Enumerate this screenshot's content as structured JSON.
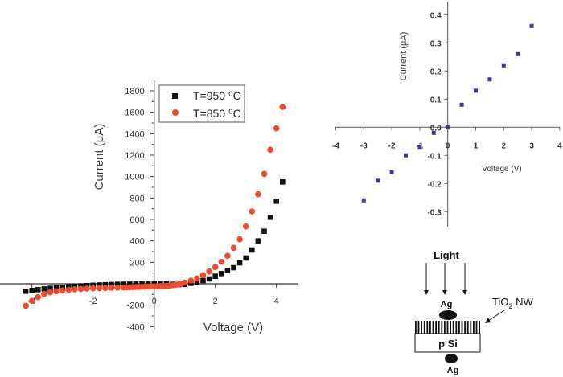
{
  "chart_data": [
    {
      "type": "scatter",
      "xlabel": "Voltage (V)",
      "ylabel": "Current (μA)",
      "xlim": [
        -4.2,
        4.6
      ],
      "ylim": [
        -400,
        1900
      ],
      "xticks": [
        -4,
        -2,
        0,
        2,
        4
      ],
      "xtick_labels": [
        "-4",
        "-2",
        "0",
        "2",
        "4"
      ],
      "yticks": [
        -400,
        -200,
        0,
        200,
        400,
        600,
        800,
        1000,
        1200,
        1400,
        1600,
        1800
      ],
      "ytick_labels": [
        "-400",
        "-200",
        "0",
        "200",
        "400",
        "600",
        "800",
        "1000",
        "1200",
        "1400",
        "1600",
        "1800"
      ],
      "legend_placement": "top-center",
      "grid": false,
      "series": [
        {
          "name": "T=950 ⁰C",
          "marker": "square",
          "color": "#111111",
          "x": [
            -4.2,
            -4.0,
            -3.8,
            -3.6,
            -3.4,
            -3.2,
            -3.0,
            -2.8,
            -2.6,
            -2.4,
            -2.2,
            -2.0,
            -1.8,
            -1.6,
            -1.4,
            -1.2,
            -1.0,
            -0.8,
            -0.6,
            -0.4,
            -0.2,
            0,
            0.2,
            0.4,
            0.6,
            0.8,
            1.0,
            1.2,
            1.4,
            1.6,
            1.8,
            2.0,
            2.2,
            2.4,
            2.6,
            2.8,
            3.0,
            3.2,
            3.4,
            3.6,
            3.8,
            4.0,
            4.2
          ],
          "y": [
            -70,
            -62,
            -55,
            -48,
            -42,
            -37,
            -32,
            -28,
            -24,
            -20,
            -17,
            -14,
            -11,
            -9,
            -7,
            -5,
            -4,
            -3,
            -2,
            -1,
            0,
            0,
            0,
            -2,
            -5,
            -8,
            -6,
            5,
            15,
            30,
            45,
            70,
            95,
            125,
            150,
            195,
            240,
            315,
            400,
            490,
            620,
            770,
            950
          ]
        },
        {
          "name": "T=850 ⁰C",
          "marker": "circle",
          "color": "#f04a2e",
          "x": [
            -4.2,
            -4.0,
            -3.8,
            -3.6,
            -3.4,
            -3.2,
            -3.0,
            -2.8,
            -2.6,
            -2.4,
            -2.2,
            -2.0,
            -1.8,
            -1.6,
            -1.4,
            -1.2,
            -1.0,
            -0.9,
            -0.8,
            -0.7,
            -0.6,
            -0.5,
            -0.4,
            -0.3,
            -0.2,
            -0.1,
            0,
            0.1,
            0.2,
            0.3,
            0.4,
            0.5,
            0.6,
            0.7,
            0.8,
            0.9,
            1.0,
            1.2,
            1.4,
            1.6,
            1.8,
            2.0,
            2.2,
            2.4,
            2.6,
            2.8,
            3.0,
            3.2,
            3.4,
            3.6,
            3.8,
            4.0,
            4.2
          ],
          "y": [
            -205,
            -160,
            -125,
            -95,
            -80,
            -70,
            -62,
            -56,
            -52,
            -48,
            -45,
            -43,
            -41,
            -40,
            -38,
            -36,
            -34,
            -33,
            -32,
            -31,
            -30,
            -29,
            -28,
            -27,
            -26,
            -25,
            -24,
            -23,
            -22,
            -21,
            -19,
            -17,
            -14,
            -10,
            -5,
            2,
            12,
            30,
            50,
            80,
            115,
            155,
            205,
            260,
            335,
            415,
            535,
            675,
            835,
            1025,
            1250,
            1450,
            1650
          ]
        }
      ]
    },
    {
      "type": "scatter",
      "xlabel": "Voltage (V)",
      "ylabel": "Current (μA)",
      "xlim": [
        -4,
        4
      ],
      "ylim": [
        -0.35,
        0.45
      ],
      "xticks": [
        -4,
        -3,
        -2,
        -1,
        0,
        1,
        2,
        3,
        4
      ],
      "xtick_labels": [
        "-4",
        "-3",
        "-2",
        "-1",
        "0",
        "1",
        "2",
        "3",
        "4"
      ],
      "yticks": [
        -0.3,
        -0.2,
        -0.1,
        0.0,
        0.1,
        0.2,
        0.3,
        0.4
      ],
      "ytick_labels": [
        "-0.3",
        "-0.2",
        "-0.1",
        "0.0",
        "0.1",
        "0.2",
        "0.3",
        "0.4"
      ],
      "grid": false,
      "series": [
        {
          "marker": "square",
          "color": "#3b3b8f",
          "x": [
            -3,
            -2.5,
            -2,
            -1.5,
            -1,
            -0.5,
            0,
            0.5,
            1,
            1.5,
            2,
            2.5,
            3
          ],
          "y": [
            -0.26,
            -0.19,
            -0.16,
            -0.1,
            -0.07,
            -0.02,
            0,
            0.08,
            0.13,
            0.17,
            0.22,
            0.26,
            0.36
          ]
        }
      ]
    }
  ],
  "diagram": {
    "light_label": "Light",
    "top_contact_label": "Ag",
    "bottom_contact_label": "Ag",
    "substrate_label": "p Si",
    "nanowire_label": "TiO",
    "nanowire_subscript": "2",
    "nanowire_suffix": " NW"
  }
}
